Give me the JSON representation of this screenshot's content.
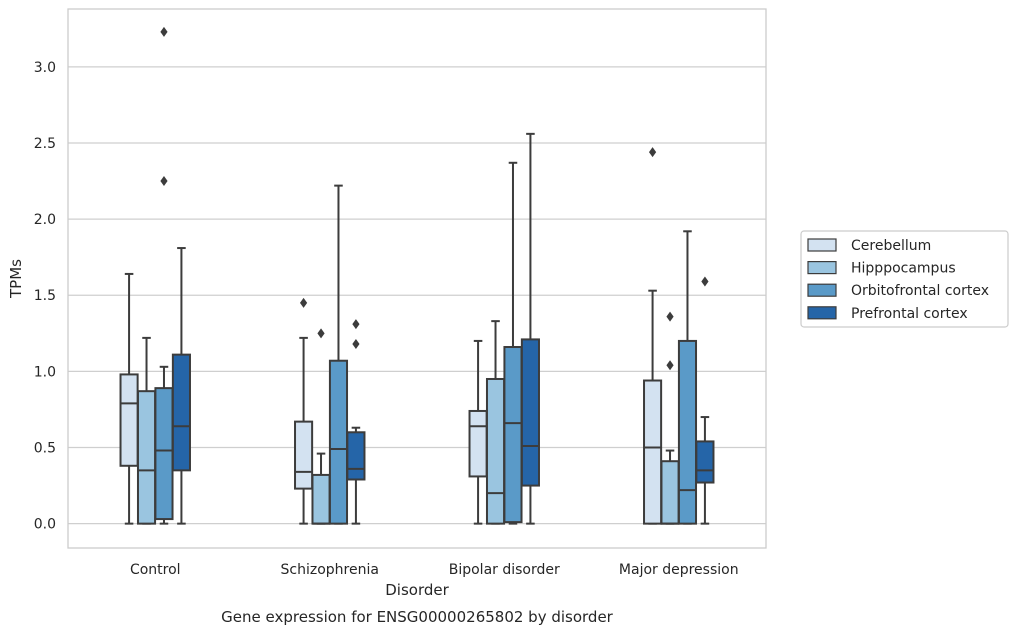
{
  "chart_data": {
    "type": "box",
    "title": "",
    "caption": "Gene expression for ENSG00000265802 by disorder",
    "xlabel": "Disorder",
    "ylabel": "TPMs",
    "ylim": [
      -0.16,
      3.38
    ],
    "yticks": [
      "0.0",
      "0.5",
      "1.0",
      "1.5",
      "2.0",
      "2.5",
      "3.0"
    ],
    "grid": "horizontal",
    "legend_placement": "right",
    "categories": [
      "Control",
      "Schizophrenia",
      "Bipolar disorder",
      "Major depression"
    ],
    "series": [
      {
        "name": "Cerebellum",
        "color": "#d3e2f1",
        "boxes": [
          {
            "whislo": 0.0,
            "q1": 0.38,
            "median": 0.79,
            "q3": 0.98,
            "whishi": 1.64,
            "fliers": []
          },
          {
            "whislo": 0.0,
            "q1": 0.23,
            "median": 0.34,
            "q3": 0.67,
            "whishi": 1.22,
            "fliers": [
              1.45
            ]
          },
          {
            "whislo": 0.0,
            "q1": 0.31,
            "median": 0.64,
            "q3": 0.74,
            "whishi": 1.2,
            "fliers": []
          },
          {
            "whislo": 0.0,
            "q1": 0.0,
            "median": 0.5,
            "q3": 0.94,
            "whishi": 1.53,
            "fliers": [
              2.44
            ]
          }
        ]
      },
      {
        "name": "Hipppocampus",
        "color": "#9ac5e0",
        "boxes": [
          {
            "whislo": 0.0,
            "q1": 0.0,
            "median": 0.35,
            "q3": 0.87,
            "whishi": 1.22,
            "fliers": []
          },
          {
            "whislo": 0.0,
            "q1": 0.0,
            "median": 0.0,
            "q3": 0.32,
            "whishi": 0.46,
            "fliers": [
              1.25
            ]
          },
          {
            "whislo": 0.0,
            "q1": 0.0,
            "median": 0.2,
            "q3": 0.95,
            "whishi": 1.33,
            "fliers": []
          },
          {
            "whislo": 0.0,
            "q1": 0.0,
            "median": 0.0,
            "q3": 0.41,
            "whishi": 0.48,
            "fliers": [
              1.04,
              1.36
            ]
          }
        ]
      },
      {
        "name": "Orbitofrontal cortex",
        "color": "#5a9ac8",
        "boxes": [
          {
            "whislo": 0.0,
            "q1": 0.03,
            "median": 0.48,
            "q3": 0.89,
            "whishi": 1.03,
            "fliers": [
              2.25,
              3.23
            ]
          },
          {
            "whislo": 0.0,
            "q1": 0.0,
            "median": 0.49,
            "q3": 1.07,
            "whishi": 2.22,
            "fliers": []
          },
          {
            "whislo": 0.0,
            "q1": 0.01,
            "median": 0.66,
            "q3": 1.16,
            "whishi": 2.37,
            "fliers": []
          },
          {
            "whislo": 0.0,
            "q1": 0.0,
            "median": 0.22,
            "q3": 1.2,
            "whishi": 1.92,
            "fliers": []
          }
        ]
      },
      {
        "name": "Prefrontal cortex",
        "color": "#2565a8",
        "boxes": [
          {
            "whislo": 0.0,
            "q1": 0.35,
            "median": 0.64,
            "q3": 1.11,
            "whishi": 1.81,
            "fliers": []
          },
          {
            "whislo": 0.0,
            "q1": 0.29,
            "median": 0.36,
            "q3": 0.6,
            "whishi": 0.63,
            "fliers": [
              1.18,
              1.31
            ]
          },
          {
            "whislo": 0.0,
            "q1": 0.25,
            "median": 0.51,
            "q3": 1.21,
            "whishi": 2.56,
            "fliers": []
          },
          {
            "whislo": 0.0,
            "q1": 0.27,
            "median": 0.35,
            "q3": 0.54,
            "whishi": 0.7,
            "fliers": [
              1.59
            ]
          }
        ]
      }
    ]
  }
}
